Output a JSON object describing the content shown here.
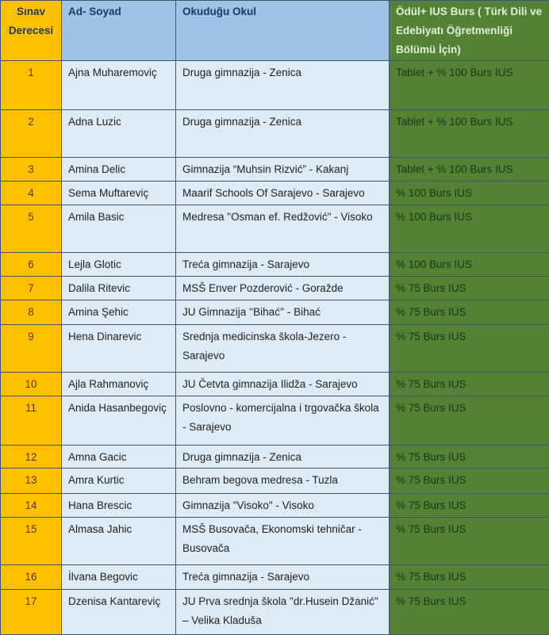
{
  "header": {
    "rank": "Sınav Derecesi",
    "name": "Ad- Soyad",
    "school": "Okuduğu Okul",
    "award": "Ödül+ IUS Burs ( Türk Dili ve Edebiyatı Öğretmenliği Bölümü İçin)"
  },
  "colors": {
    "rank_column": "#FFC000",
    "header_blue": "#9DC3E6",
    "cell_blue": "#DDEBF7",
    "award_green": "#548235"
  },
  "rows": [
    {
      "rank": "1",
      "name": "Ajna Muharemoviç",
      "school": "Druga gimnazija - Zenica",
      "award": "Tablet + % 100 Burs IUS"
    },
    {
      "rank": "2",
      "name": "Adna Luzic",
      "school": "Druga gimnazija - Zenica",
      "award": "Tablet + % 100 Burs IUS"
    },
    {
      "rank": "3",
      "name": "Amina Delic",
      "school": "Gimnazija “Muhsin Rizvić” - Kakanj",
      "award": "Tablet + % 100 Burs IUS"
    },
    {
      "rank": "4",
      "name": "Sema Muftareviç",
      "school": "Maarif Schools Of Sarajevo - Sarajevo",
      "award": "% 100 Burs IUS"
    },
    {
      "rank": "5",
      "name": "Amila Basic",
      "school": "Medresa \"Osman ef. Redžović\" - Visoko",
      "award": "% 100 Burs IUS"
    },
    {
      "rank": "6",
      "name": "Lejla Glotic",
      "school": "Treća gimnazija - Sarajevo",
      "award": "% 100 Burs IUS"
    },
    {
      "rank": "7",
      "name": "Dalila Ritevic",
      "school": "MSŠ Enver Pozderović - Goražde",
      "award": "% 75 Burs IUS"
    },
    {
      "rank": "8",
      "name": "Amina Şehic",
      "school": "JU Gimnazija ''Bihać'' - Bihać",
      "award": "% 75 Burs IUS"
    },
    {
      "rank": "9",
      "name": "Hena Dinarevic",
      "school": "Srednja medicinska škola-Jezero - Sarajevo",
      "award": "% 75 Burs IUS"
    },
    {
      "rank": "10",
      "name": "Ajla Rahmanoviç",
      "school": "JU Četvta gimnazija Ilidža - Sarajevo",
      "award": "% 75 Burs IUS"
    },
    {
      "rank": "11",
      "name": "Anida Hasanbegoviç",
      "school": "Poslovno - komercijalna i trgovačka škola - Sarajevo",
      "award": "% 75 Burs IUS"
    },
    {
      "rank": "12",
      "name": "Amna Gacic",
      "school": "Druga gimnazija - Zenica",
      "award": "% 75 Burs IUS"
    },
    {
      "rank": "13",
      "name": "Amra Kurtic",
      "school": "Behram begova medresa - Tuzla",
      "award": "% 75 Burs IUS"
    },
    {
      "rank": "14",
      "name": "Hana Brescic",
      "school": "Gimnazija \"Visoko\" - Visoko",
      "award": "% 75 Burs IUS"
    },
    {
      "rank": "15",
      "name": "Almasa Jahic",
      "school": "MSŠ Busovača, Ekonomski tehničar - Busovača",
      "award": "% 75 Burs IUS"
    },
    {
      "rank": "16",
      "name": "İlvana Begovic",
      "school": "Treća gimnazija - Sarajevo",
      "award": "% 75 Burs IUS"
    },
    {
      "rank": "17",
      "name": "Dzenisa Kantareviç",
      "school": "JU Prva srednja škola \"dr.Husein Džanić\" – Velika Kladuša",
      "award": "% 75 Burs IUS"
    }
  ]
}
